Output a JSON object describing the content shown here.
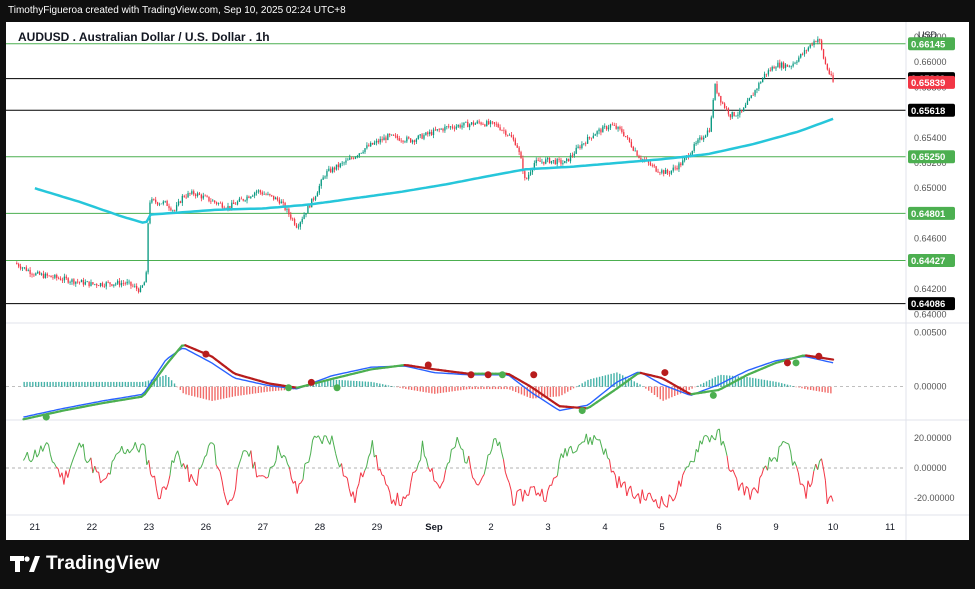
{
  "header": {
    "attribution": "TimothyFigueroa created with TradingView.com, Sep 10, 2025 02:24 UTC+8"
  },
  "footer": {
    "brand": "TradingView"
  },
  "colors": {
    "background": "#ffffff",
    "frame": "#0f0f0f",
    "up": "#089981",
    "down": "#f23645",
    "ema": "#26c6da",
    "level_line": "#4caf50",
    "black_line": "#000000",
    "macd": "#2962ff",
    "signal_up": "#4caf50",
    "signal_down": "#b71c1c",
    "osc_up": "#4caf50",
    "osc_down": "#f23645",
    "price_badge": "#f23645"
  },
  "chart_data": {
    "type": "candlestick",
    "title": "AUDUSD . Australian Dollar / U.S. Dollar . 1h",
    "currency": "USD",
    "y_ticks": [
      "0.66200",
      "0.66000",
      "0.65800",
      "0.65600",
      "0.65400",
      "0.65200",
      "0.65000",
      "0.64800",
      "0.64600",
      "0.64400",
      "0.64200",
      "0.64000"
    ],
    "ylim": [
      0.6394,
      0.6627
    ],
    "x_ticks": [
      {
        "label": "21",
        "x": 0
      },
      {
        "label": "22",
        "x": 1
      },
      {
        "label": "23",
        "x": 2
      },
      {
        "label": "26",
        "x": 3
      },
      {
        "label": "27",
        "x": 4
      },
      {
        "label": "28",
        "x": 5
      },
      {
        "label": "29",
        "x": 6
      },
      {
        "label": "Sep",
        "x": 7
      },
      {
        "label": "2",
        "x": 8
      },
      {
        "label": "3",
        "x": 9
      },
      {
        "label": "4",
        "x": 10
      },
      {
        "label": "5",
        "x": 11
      },
      {
        "label": "6",
        "x": 12
      },
      {
        "label": "9",
        "x": 13
      },
      {
        "label": "10",
        "x": 14
      },
      {
        "label": "11",
        "x": 15
      }
    ],
    "xlim": [
      -0.05,
      15.7
    ],
    "last_x": 14.0,
    "price_anchors": [
      [
        -0.4,
        0.6442
      ],
      [
        0.0,
        0.6432
      ],
      [
        0.5,
        0.6428
      ],
      [
        1.0,
        0.6424
      ],
      [
        1.6,
        0.6425
      ],
      [
        1.85,
        0.6419
      ],
      [
        1.95,
        0.6428
      ],
      [
        2.0,
        0.649
      ],
      [
        2.3,
        0.6488
      ],
      [
        2.45,
        0.6482
      ],
      [
        2.6,
        0.6494
      ],
      [
        2.8,
        0.6496
      ],
      [
        3.1,
        0.649
      ],
      [
        3.4,
        0.6485
      ],
      [
        3.6,
        0.649
      ],
      [
        3.9,
        0.6498
      ],
      [
        4.3,
        0.649
      ],
      [
        4.6,
        0.647
      ],
      [
        4.9,
        0.6493
      ],
      [
        5.1,
        0.6512
      ],
      [
        5.5,
        0.6522
      ],
      [
        5.8,
        0.6532
      ],
      [
        6.2,
        0.6541
      ],
      [
        6.6,
        0.6538
      ],
      [
        6.9,
        0.6543
      ],
      [
        7.2,
        0.6548
      ],
      [
        7.5,
        0.655
      ],
      [
        7.8,
        0.6552
      ],
      [
        8.1,
        0.655
      ],
      [
        8.3,
        0.6543
      ],
      [
        8.45,
        0.6535
      ],
      [
        8.55,
        0.6518
      ],
      [
        8.6,
        0.6505
      ],
      [
        8.75,
        0.652
      ],
      [
        9.0,
        0.6522
      ],
      [
        9.3,
        0.652
      ],
      [
        9.55,
        0.6533
      ],
      [
        9.8,
        0.6543
      ],
      [
        10.1,
        0.655
      ],
      [
        10.3,
        0.6545
      ],
      [
        10.6,
        0.6525
      ],
      [
        10.9,
        0.6515
      ],
      [
        11.1,
        0.6512
      ],
      [
        11.35,
        0.652
      ],
      [
        11.6,
        0.6535
      ],
      [
        11.85,
        0.6548
      ],
      [
        11.92,
        0.6582
      ],
      [
        12.05,
        0.6568
      ],
      [
        12.2,
        0.6558
      ],
      [
        12.4,
        0.656
      ],
      [
        12.6,
        0.6575
      ],
      [
        12.8,
        0.659
      ],
      [
        13.0,
        0.6598
      ],
      [
        13.25,
        0.6597
      ],
      [
        13.5,
        0.6608
      ],
      [
        13.65,
        0.6616
      ],
      [
        13.75,
        0.6619
      ],
      [
        13.85,
        0.66
      ],
      [
        14.0,
        0.6584
      ]
    ],
    "ema_anchors": [
      [
        0.0,
        0.65
      ],
      [
        0.8,
        0.6489
      ],
      [
        1.5,
        0.6478
      ],
      [
        1.95,
        0.6472
      ],
      [
        2.0,
        0.6479
      ],
      [
        2.6,
        0.6481
      ],
      [
        3.2,
        0.6483
      ],
      [
        4.0,
        0.6484
      ],
      [
        4.8,
        0.6487
      ],
      [
        5.6,
        0.6492
      ],
      [
        6.4,
        0.6497
      ],
      [
        7.2,
        0.6503
      ],
      [
        8.0,
        0.651
      ],
      [
        8.6,
        0.6515
      ],
      [
        9.4,
        0.6517
      ],
      [
        10.2,
        0.652
      ],
      [
        11.0,
        0.6523
      ],
      [
        11.8,
        0.6527
      ],
      [
        12.6,
        0.6535
      ],
      [
        13.4,
        0.6545
      ],
      [
        14.0,
        0.6555
      ]
    ],
    "price_levels": [
      {
        "label": "0.66145",
        "value": 0.66145,
        "line": "green"
      },
      {
        "label": "0.65869",
        "value": 0.65869,
        "line": "black"
      },
      {
        "label": "0.65618",
        "value": 0.65618,
        "line": "black"
      },
      {
        "label": "0.65250",
        "value": 0.6525,
        "line": "green"
      },
      {
        "label": "0.64801",
        "value": 0.64801,
        "line": "green"
      },
      {
        "label": "0.64427",
        "value": 0.64427,
        "line": "green"
      },
      {
        "label": "0.64086",
        "value": 0.64086,
        "line": "black"
      }
    ],
    "current_price": {
      "label": "0.65839",
      "value": 0.65839
    },
    "macd_panel": {
      "y_ticks": [
        "0.00500",
        "0.00000"
      ],
      "ylim": [
        -0.0027,
        0.0055
      ],
      "macd_anchors": [
        [
          -0.2,
          -0.0028
        ],
        [
          0.5,
          -0.002
        ],
        [
          1.2,
          -0.0013
        ],
        [
          1.9,
          -0.0007
        ],
        [
          2.3,
          0.0025
        ],
        [
          2.6,
          0.0036
        ],
        [
          3.1,
          0.0022
        ],
        [
          3.5,
          0.0008
        ],
        [
          4.1,
          0.0001
        ],
        [
          4.6,
          -0.0002
        ],
        [
          5.2,
          0.001
        ],
        [
          5.9,
          0.0018
        ],
        [
          6.5,
          0.0019
        ],
        [
          7.0,
          0.0013
        ],
        [
          7.6,
          0.0011
        ],
        [
          8.3,
          0.0011
        ],
        [
          8.7,
          -0.0005
        ],
        [
          9.2,
          -0.0022
        ],
        [
          9.7,
          -0.0017
        ],
        [
          10.2,
          0.0004
        ],
        [
          10.6,
          0.0014
        ],
        [
          11.0,
          0.0002
        ],
        [
          11.5,
          -0.0008
        ],
        [
          12.0,
          0.0002
        ],
        [
          12.5,
          0.0015
        ],
        [
          13.0,
          0.0024
        ],
        [
          13.5,
          0.0028
        ],
        [
          14.0,
          0.0022
        ]
      ],
      "signal_anchors": [
        [
          -0.2,
          -0.003
        ],
        [
          0.5,
          -0.0022
        ],
        [
          1.2,
          -0.0015
        ],
        [
          1.9,
          -0.0009
        ],
        [
          2.3,
          0.002
        ],
        [
          2.6,
          0.0039
        ],
        [
          3.1,
          0.0028
        ],
        [
          3.5,
          0.0012
        ],
        [
          4.1,
          0.0003
        ],
        [
          4.6,
          -0.0001
        ],
        [
          5.2,
          0.0007
        ],
        [
          5.9,
          0.0016
        ],
        [
          6.5,
          0.002
        ],
        [
          7.0,
          0.0016
        ],
        [
          7.6,
          0.0012
        ],
        [
          8.3,
          0.0012
        ],
        [
          8.7,
          0.0
        ],
        [
          9.2,
          -0.0018
        ],
        [
          9.7,
          -0.002
        ],
        [
          10.2,
          -0.0002
        ],
        [
          10.6,
          0.0013
        ],
        [
          11.0,
          0.0008
        ],
        [
          11.5,
          -0.0007
        ],
        [
          12.0,
          -0.0003
        ],
        [
          12.5,
          0.0011
        ],
        [
          13.0,
          0.0022
        ],
        [
          13.5,
          0.0029
        ],
        [
          14.0,
          0.0025
        ]
      ],
      "cross_points": [
        {
          "x": 0.2,
          "y": -0.0028,
          "dir": "up"
        },
        {
          "x": 3.0,
          "y": 0.003,
          "dir": "down"
        },
        {
          "x": 4.45,
          "y": -0.0001,
          "dir": "up"
        },
        {
          "x": 4.85,
          "y": 0.0004,
          "dir": "down"
        },
        {
          "x": 5.3,
          "y": -0.0001,
          "dir": "up"
        },
        {
          "x": 6.9,
          "y": 0.002,
          "dir": "down"
        },
        {
          "x": 7.65,
          "y": 0.0011,
          "dir": "down"
        },
        {
          "x": 7.95,
          "y": 0.0011,
          "dir": "down"
        },
        {
          "x": 8.2,
          "y": 0.0011,
          "dir": "up"
        },
        {
          "x": 8.75,
          "y": 0.0011,
          "dir": "down"
        },
        {
          "x": 9.6,
          "y": -0.0022,
          "dir": "up"
        },
        {
          "x": 11.05,
          "y": 0.0013,
          "dir": "down"
        },
        {
          "x": 11.9,
          "y": -0.0008,
          "dir": "up"
        },
        {
          "x": 13.2,
          "y": 0.0022,
          "dir": "down"
        },
        {
          "x": 13.35,
          "y": 0.0022,
          "dir": "up"
        },
        {
          "x": 13.75,
          "y": 0.0028,
          "dir": "down"
        }
      ]
    },
    "osc_panel": {
      "y_ticks": [
        "20.00000",
        "0.00000",
        "-20.00000"
      ],
      "ylim": [
        -30,
        30
      ],
      "anchors": [
        [
          -0.2,
          5
        ],
        [
          0.2,
          14
        ],
        [
          0.5,
          -8
        ],
        [
          0.8,
          16
        ],
        [
          1.2,
          -12
        ],
        [
          1.5,
          12
        ],
        [
          1.9,
          14
        ],
        [
          2.2,
          -20
        ],
        [
          2.5,
          10
        ],
        [
          2.8,
          -12
        ],
        [
          3.1,
          18
        ],
        [
          3.4,
          -26
        ],
        [
          3.7,
          14
        ],
        [
          4.0,
          -10
        ],
        [
          4.3,
          14
        ],
        [
          4.6,
          -16
        ],
        [
          4.9,
          18
        ],
        [
          5.2,
          20
        ],
        [
          5.6,
          -22
        ],
        [
          5.9,
          16
        ],
        [
          6.2,
          -18
        ],
        [
          6.5,
          -24
        ],
        [
          6.8,
          14
        ],
        [
          7.1,
          -14
        ],
        [
          7.4,
          18
        ],
        [
          7.8,
          -10
        ],
        [
          8.1,
          20
        ],
        [
          8.4,
          -22
        ],
        [
          8.7,
          -14
        ],
        [
          9.0,
          -18
        ],
        [
          9.3,
          12
        ],
        [
          9.6,
          18
        ],
        [
          9.9,
          20
        ],
        [
          10.2,
          -8
        ],
        [
          10.5,
          -18
        ],
        [
          10.8,
          -20
        ],
        [
          11.1,
          -24
        ],
        [
          11.4,
          -6
        ],
        [
          11.7,
          20
        ],
        [
          12.0,
          22
        ],
        [
          12.3,
          -10
        ],
        [
          12.6,
          -18
        ],
        [
          12.9,
          4
        ],
        [
          13.2,
          16
        ],
        [
          13.5,
          -18
        ],
        [
          13.8,
          8
        ],
        [
          13.9,
          -20
        ],
        [
          14.0,
          -22
        ]
      ]
    }
  }
}
